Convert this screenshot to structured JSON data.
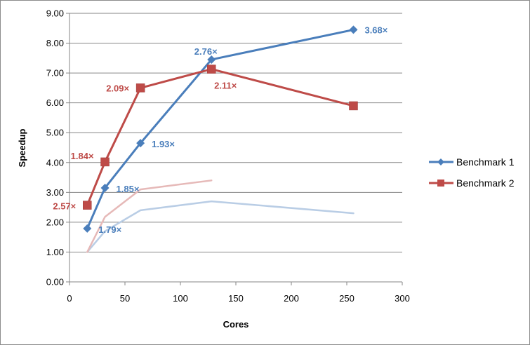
{
  "chart_data": {
    "type": "line",
    "title": "",
    "xlabel": "Cores",
    "ylabel": "Speedup",
    "xlim": [
      0,
      300
    ],
    "ylim": [
      0,
      9
    ],
    "x_ticks": [
      "0",
      "50",
      "100",
      "150",
      "200",
      "250",
      "300"
    ],
    "y_ticks": [
      "0.00",
      "1.00",
      "2.00",
      "3.00",
      "4.00",
      "5.00",
      "6.00",
      "7.00",
      "8.00",
      "9.00"
    ],
    "grid": "horizontal",
    "legend": {
      "position": "right",
      "entries": [
        "Benchmark 1",
        "Benchmark 2"
      ]
    },
    "series": [
      {
        "name": "Benchmark 1",
        "color": "#4a7ebb",
        "marker": "diamond",
        "x": [
          16,
          32,
          64,
          128,
          256
        ],
        "y": [
          1.79,
          3.15,
          4.65,
          7.45,
          8.45
        ],
        "labels": [
          "1.79×",
          "1.85×",
          "1.93×",
          "2.76×",
          "3.68×"
        ]
      },
      {
        "name": "Benchmark 2",
        "color": "#be4b48",
        "marker": "square",
        "x": [
          16,
          32,
          64,
          128,
          256
        ],
        "y": [
          2.57,
          4.02,
          6.5,
          7.13,
          5.9
        ],
        "labels": [
          "2.57×",
          "1.84×",
          "2.09×",
          "2.11×",
          ""
        ]
      },
      {
        "color": "#b9cde5",
        "marker": "none",
        "x": [
          16,
          32,
          64,
          128,
          256
        ],
        "y": [
          1.0,
          1.7,
          2.4,
          2.7,
          2.3
        ],
        "labels": []
      },
      {
        "color": "#e6b9b8",
        "marker": "none",
        "x": [
          16,
          32,
          64,
          128
        ],
        "y": [
          1.0,
          2.18,
          3.1,
          3.4
        ],
        "labels": []
      }
    ]
  }
}
